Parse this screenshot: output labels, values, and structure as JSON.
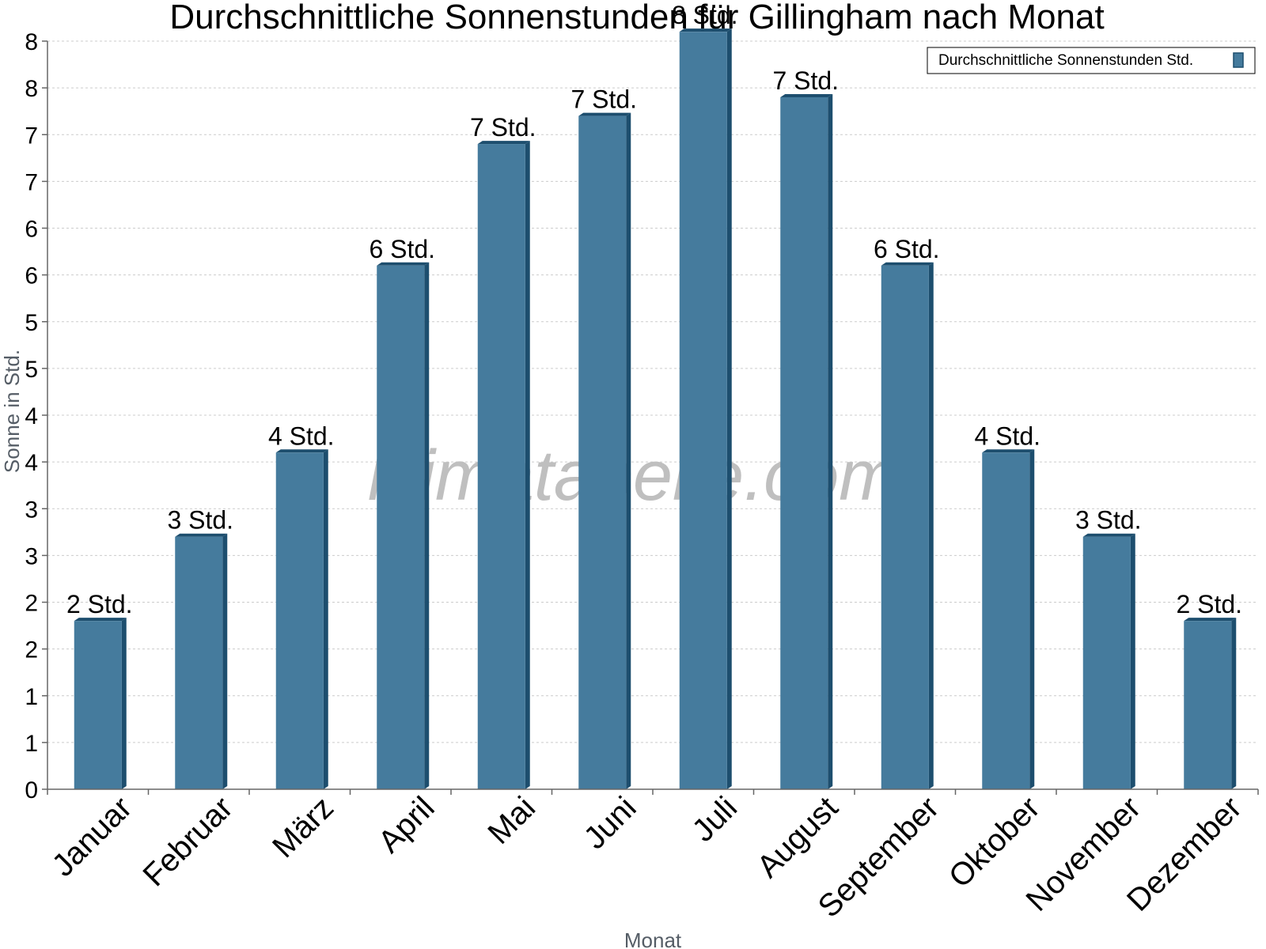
{
  "chart_data": {
    "type": "bar",
    "title": "Durchschnittliche Sonnenstunden für Gillingham nach Monat",
    "xlabel": "Monat",
    "ylabel": "Sonne in Std.",
    "categories": [
      "Januar",
      "Februar",
      "März",
      "April",
      "Mai",
      "Juni",
      "Juli",
      "August",
      "September",
      "Oktober",
      "November",
      "Dezember"
    ],
    "series": [
      {
        "name": "Durchschnittliche Sonnenstunden Std.",
        "values": [
          1.8,
          2.7,
          3.6,
          5.6,
          6.9,
          7.2,
          8.1,
          7.4,
          5.6,
          3.6,
          2.7,
          1.8
        ],
        "labels": [
          "2 Std.",
          "3 Std.",
          "4 Std.",
          "6 Std.",
          "7 Std.",
          "7 Std.",
          "8 Std.",
          "7 Std.",
          "6 Std.",
          "4 Std.",
          "3 Std.",
          "2 Std."
        ]
      }
    ],
    "ylim": [
      0,
      8
    ],
    "ytick_labels": [
      "0",
      "1",
      "1",
      "2",
      "2",
      "3",
      "3",
      "4",
      "4",
      "5",
      "5",
      "6",
      "6",
      "7",
      "7",
      "8",
      "8"
    ],
    "grid": true,
    "legend_position": "top-right",
    "colors": {
      "bar": "#457b9d",
      "bar_side": "#1d4e6e",
      "grid": "#cccccc",
      "axis": "#666666"
    }
  },
  "watermark": "klimatabelle.com"
}
